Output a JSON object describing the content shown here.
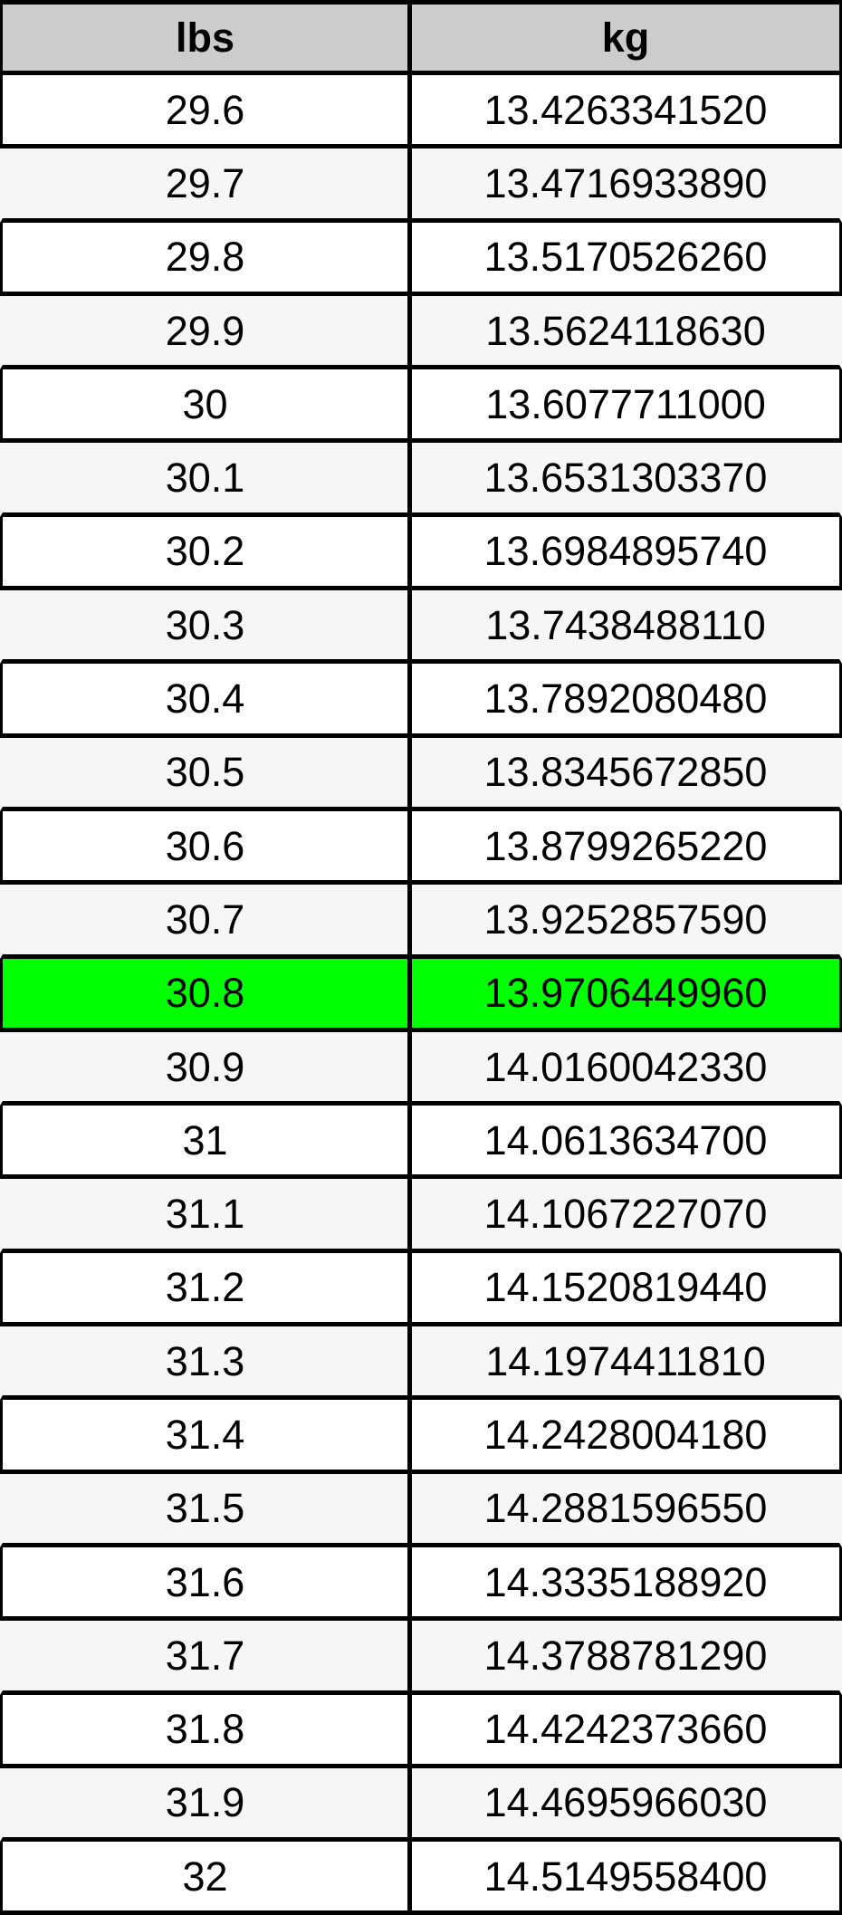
{
  "table": {
    "headers": {
      "lbs": "lbs",
      "kg": "kg"
    },
    "highlight_row_index": 12,
    "rows": [
      {
        "lbs": "29.6",
        "kg": "13.4263341520"
      },
      {
        "lbs": "29.7",
        "kg": "13.4716933890"
      },
      {
        "lbs": "29.8",
        "kg": "13.5170526260"
      },
      {
        "lbs": "29.9",
        "kg": "13.5624118630"
      },
      {
        "lbs": "30",
        "kg": "13.6077711000"
      },
      {
        "lbs": "30.1",
        "kg": "13.6531303370"
      },
      {
        "lbs": "30.2",
        "kg": "13.6984895740"
      },
      {
        "lbs": "30.3",
        "kg": "13.7438488110"
      },
      {
        "lbs": "30.4",
        "kg": "13.7892080480"
      },
      {
        "lbs": "30.5",
        "kg": "13.8345672850"
      },
      {
        "lbs": "30.6",
        "kg": "13.8799265220"
      },
      {
        "lbs": "30.7",
        "kg": "13.9252857590"
      },
      {
        "lbs": "30.8",
        "kg": "13.9706449960"
      },
      {
        "lbs": "30.9",
        "kg": "14.0160042330"
      },
      {
        "lbs": "31",
        "kg": "14.0613634700"
      },
      {
        "lbs": "31.1",
        "kg": "14.1067227070"
      },
      {
        "lbs": "31.2",
        "kg": "14.1520819440"
      },
      {
        "lbs": "31.3",
        "kg": "14.1974411810"
      },
      {
        "lbs": "31.4",
        "kg": "14.2428004180"
      },
      {
        "lbs": "31.5",
        "kg": "14.2881596550"
      },
      {
        "lbs": "31.6",
        "kg": "14.3335188920"
      },
      {
        "lbs": "31.7",
        "kg": "14.3788781290"
      },
      {
        "lbs": "31.8",
        "kg": "14.4242373660"
      },
      {
        "lbs": "31.9",
        "kg": "14.4695966030"
      },
      {
        "lbs": "32",
        "kg": "14.5149558400"
      }
    ],
    "colors": {
      "header_bg": "#cccccc",
      "row_even_bg": "#ffffff",
      "row_odd_bg": "#f6f6f6",
      "highlight_bg": "#00ff00",
      "border": "#000000",
      "text": "#000000"
    }
  }
}
